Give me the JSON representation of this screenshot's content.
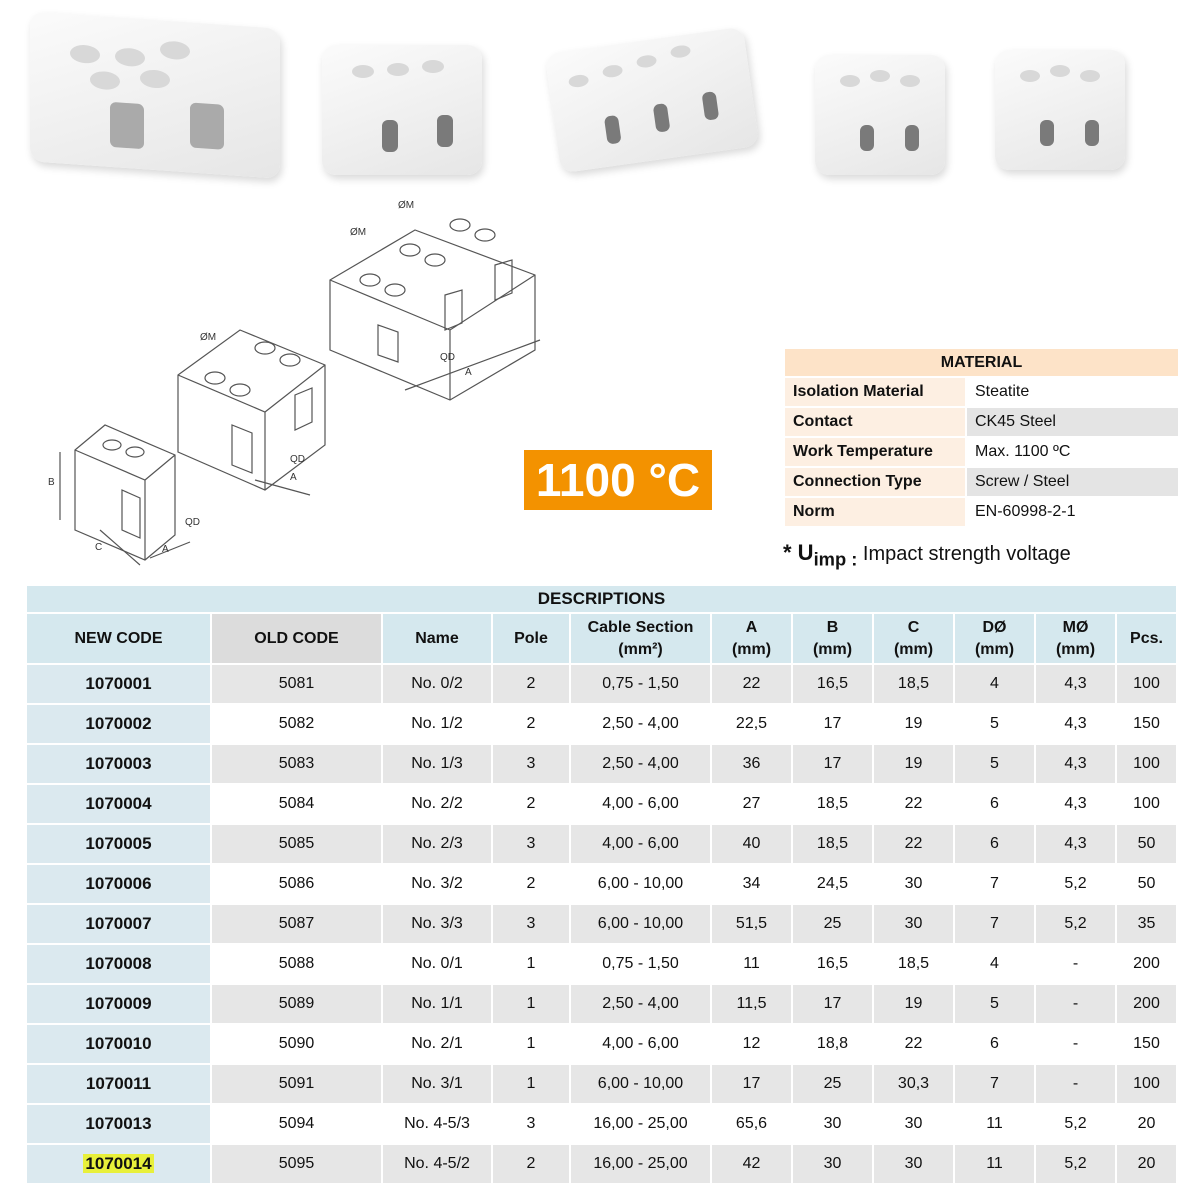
{
  "badge": {
    "text": "1100 °C",
    "color": "#f39200"
  },
  "diagram_labels": {
    "m": "ØM",
    "a": "A",
    "b": "B",
    "c": "C",
    "qd": "QD"
  },
  "material": {
    "title": "MATERIAL",
    "rows": [
      {
        "label": "Isolation Material",
        "value": "Steatite"
      },
      {
        "label": "Contact",
        "value": "CK45 Steel"
      },
      {
        "label": "Work Temperature",
        "value": "Max. 1100 ºC"
      },
      {
        "label": "Connection Type",
        "value": "Screw / Steel"
      },
      {
        "label": "Norm",
        "value": "EN-60998-2-1"
      }
    ],
    "note_symbol": "* U",
    "note_sub": "imp :",
    "note_text": "Impact strength voltage"
  },
  "descriptions": {
    "title": "DESCRIPTIONS",
    "headers": [
      "NEW CODE",
      "OLD CODE",
      "Name",
      "Pole",
      "Cable Section",
      "A",
      "B",
      "C",
      "DØ",
      "MØ",
      "Pcs."
    ],
    "units": [
      "",
      "",
      "",
      "",
      "(mm²)",
      "(mm)",
      "(mm)",
      "(mm)",
      "(mm)",
      "(mm)",
      ""
    ],
    "highlighted_code": "1070014",
    "rows": [
      [
        "1070001",
        "5081",
        "No. 0/2",
        "2",
        "0,75 - 1,50",
        "22",
        "16,5",
        "18,5",
        "4",
        "4,3",
        "100"
      ],
      [
        "1070002",
        "5082",
        "No. 1/2",
        "2",
        "2,50 - 4,00",
        "22,5",
        "17",
        "19",
        "5",
        "4,3",
        "150"
      ],
      [
        "1070003",
        "5083",
        "No. 1/3",
        "3",
        "2,50 - 4,00",
        "36",
        "17",
        "19",
        "5",
        "4,3",
        "100"
      ],
      [
        "1070004",
        "5084",
        "No. 2/2",
        "2",
        "4,00 - 6,00",
        "27",
        "18,5",
        "22",
        "6",
        "4,3",
        "100"
      ],
      [
        "1070005",
        "5085",
        "No. 2/3",
        "3",
        "4,00 - 6,00",
        "40",
        "18,5",
        "22",
        "6",
        "4,3",
        "50"
      ],
      [
        "1070006",
        "5086",
        "No. 3/2",
        "2",
        "6,00 - 10,00",
        "34",
        "24,5",
        "30",
        "7",
        "5,2",
        "50"
      ],
      [
        "1070007",
        "5087",
        "No. 3/3",
        "3",
        "6,00 - 10,00",
        "51,5",
        "25",
        "30",
        "7",
        "5,2",
        "35"
      ],
      [
        "1070008",
        "5088",
        "No. 0/1",
        "1",
        "0,75 - 1,50",
        "11",
        "16,5",
        "18,5",
        "4",
        "-",
        "200"
      ],
      [
        "1070009",
        "5089",
        "No. 1/1",
        "1",
        "2,50 - 4,00",
        "11,5",
        "17",
        "19",
        "5",
        "-",
        "200"
      ],
      [
        "1070010",
        "5090",
        "No. 2/1",
        "1",
        "4,00 - 6,00",
        "12",
        "18,8",
        "22",
        "6",
        "-",
        "150"
      ],
      [
        "1070011",
        "5091",
        "No. 3/1",
        "1",
        "6,00 - 10,00",
        "17",
        "25",
        "30,3",
        "7",
        "-",
        "100"
      ],
      [
        "1070013",
        "5094",
        "No. 4-5/3",
        "3",
        "16,00 - 25,00",
        "65,6",
        "30",
        "30",
        "11",
        "5,2",
        "20"
      ],
      [
        "1070014",
        "5095",
        "No. 4-5/2",
        "2",
        "16,00 - 25,00",
        "42",
        "30",
        "30",
        "11",
        "5,2",
        "20"
      ]
    ]
  }
}
